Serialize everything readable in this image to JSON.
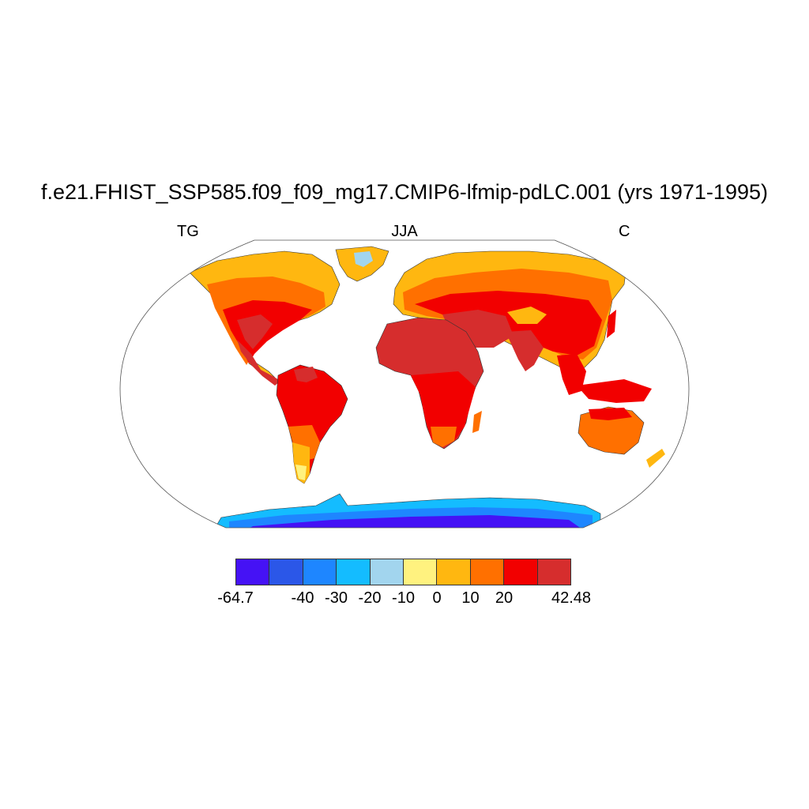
{
  "title": "f.e21.FHIST_SSP585.f09_f09_mg17.CMIP6-lfmip-pdLC.001 (yrs 1971-1995)",
  "subtitle_left": "TG",
  "subtitle_center": "JJA",
  "subtitle_right": "C",
  "map": {
    "projection": "Robinson",
    "fill_colors": {
      "very_hot": "#d62d2d",
      "hot": "#f20000",
      "warm": "#ff7000",
      "mild": "#ffb710",
      "cool": "#fff27f",
      "cold": "#a2d5ee",
      "ice1": "#14bcff",
      "ice2": "#1e86ff",
      "ice3": "#2b57e8",
      "ice4": "#4512f5"
    }
  },
  "colorbar": {
    "colors": [
      "#4512f5",
      "#2b57e8",
      "#1e86ff",
      "#14bcff",
      "#a2d5ee",
      "#fff27f",
      "#ffb710",
      "#ff7000",
      "#f20000",
      "#d62d2d"
    ],
    "labels": [
      "-64.7",
      "-40",
      "-30",
      "-20",
      "-10",
      "0",
      "10",
      "20",
      "42.48"
    ],
    "label_boundaries": [
      0,
      2,
      3,
      4,
      5,
      6,
      7,
      8,
      10
    ]
  }
}
